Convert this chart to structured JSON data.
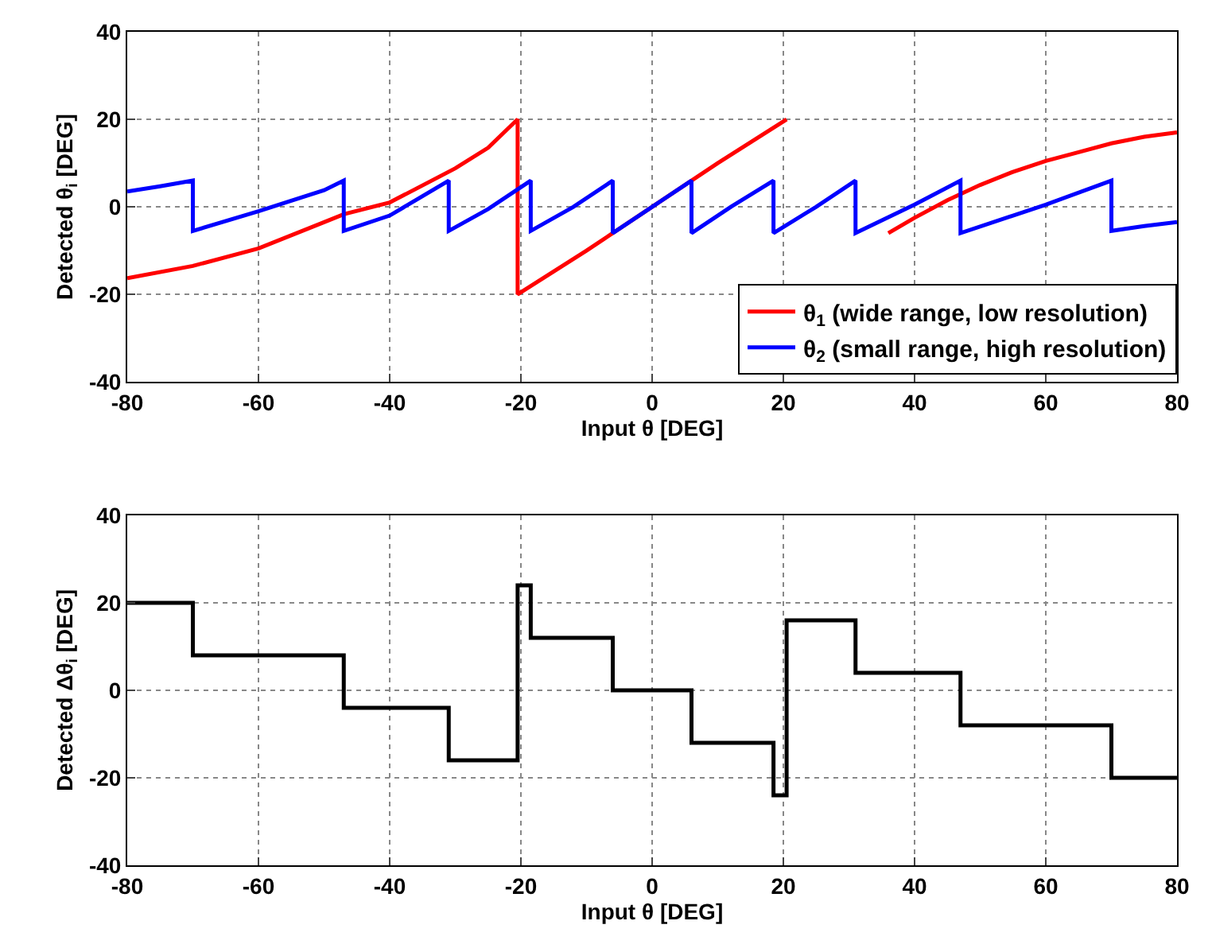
{
  "chart_data": [
    {
      "type": "line",
      "xlabel": "Input θ [DEG]",
      "ylabel": "Detected θ$_{i}$ [DEG]",
      "xlim": [
        -80,
        80
      ],
      "xticks": [
        -80,
        -60,
        -40,
        -20,
        0,
        20,
        40,
        60,
        80
      ],
      "ylim": [
        -40,
        40
      ],
      "yticks": [
        -40,
        -20,
        0,
        20,
        40
      ],
      "grid": true,
      "legend": "bottom right",
      "line_style": "solid",
      "marker": "none",
      "series": [
        {
          "name": "θ$_{1}$ (wide range, low resolution)",
          "color": "#ff0000",
          "x": [
            -80,
            -70,
            -60,
            -50,
            -47,
            -40,
            -30,
            -25,
            -20.5,
            -20.5,
            -10,
            0,
            10,
            20.5,
            21,
            36,
            40,
            45,
            50,
            55,
            60,
            65,
            70,
            75,
            80
          ],
          "values": [
            -16.3,
            -13.5,
            -9.5,
            -3.5,
            -1.7,
            1,
            8.8,
            13.5,
            20,
            -20,
            -10,
            0,
            10,
            20,
            null,
            -6,
            -2.5,
            1.5,
            5,
            8,
            10.5,
            12.5,
            14.5,
            16,
            17
          ]
        },
        {
          "name": "θ$_{2}$ (small range, high resolution)",
          "color": "#0000ff",
          "x": [
            -80,
            -75,
            -70,
            -70,
            -60,
            -50,
            -47,
            -47,
            -40,
            -31,
            -31,
            -25,
            -18.5,
            -18.5,
            -12,
            -6,
            -6,
            0,
            6,
            6,
            12,
            18.5,
            18.5,
            25,
            31,
            31,
            40,
            47,
            47,
            60,
            70,
            70,
            75,
            80
          ],
          "values": [
            3.5,
            4.7,
            6,
            -5.5,
            -1,
            3.8,
            6,
            -5.5,
            -2,
            6,
            -5.5,
            -0.5,
            6,
            -5.5,
            0,
            6,
            -6,
            0,
            6,
            -6,
            0,
            6,
            -6,
            0,
            6,
            -6,
            0.5,
            6,
            -6,
            0.5,
            6,
            -5.5,
            -4.4,
            -3.5
          ]
        }
      ]
    },
    {
      "type": "step",
      "xlabel": "Input θ [DEG]",
      "ylabel": "Detected Δθ$_{i}$ [DEG]",
      "xlim": [
        -80,
        80
      ],
      "xticks": [
        -80,
        -60,
        -40,
        -20,
        0,
        20,
        40,
        60,
        80
      ],
      "ylim": [
        -40,
        40
      ],
      "yticks": [
        -40,
        -20,
        0,
        20,
        40
      ],
      "grid": true,
      "line_style": "solid",
      "marker": "none",
      "series": [
        {
          "color": "#000000",
          "x": [
            -80,
            -70,
            -47,
            -31,
            -20.5,
            -18.5,
            -6,
            6,
            18.5,
            20.5,
            31,
            47,
            70,
            80
          ],
          "values": [
            20,
            8,
            -4,
            -16,
            24,
            12,
            0,
            -12,
            -24,
            16,
            4,
            -8,
            -20,
            -20
          ]
        }
      ]
    }
  ]
}
